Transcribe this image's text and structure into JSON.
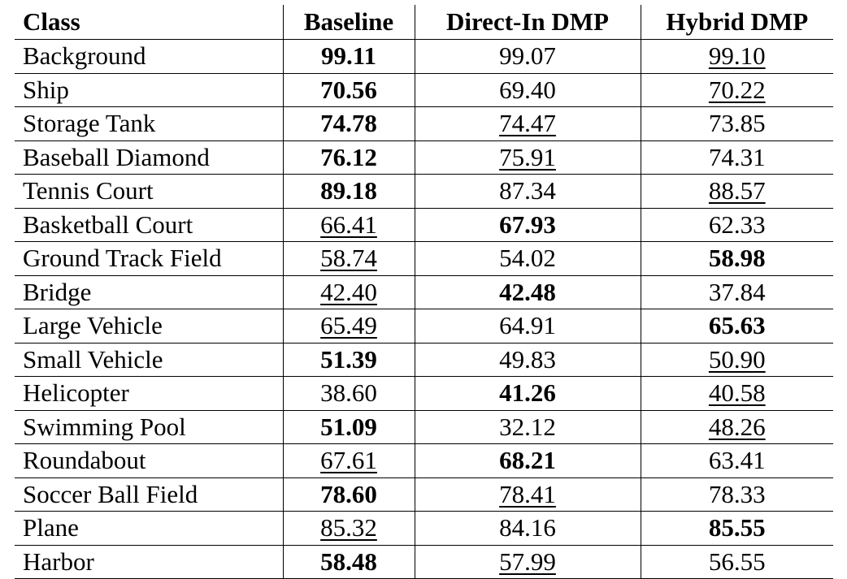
{
  "table": {
    "headers": [
      "Class",
      "Baseline",
      "Direct-In DMP",
      "Hybrid DMP"
    ],
    "rows": [
      {
        "class": "Background",
        "baseline": "99.11",
        "direct": "99.07",
        "hybrid": "99.10",
        "best": "baseline",
        "second": "hybrid"
      },
      {
        "class": "Ship",
        "baseline": "70.56",
        "direct": "69.40",
        "hybrid": "70.22",
        "best": "baseline",
        "second": "hybrid"
      },
      {
        "class": "Storage Tank",
        "baseline": "74.78",
        "direct": "74.47",
        "hybrid": "73.85",
        "best": "baseline",
        "second": "direct"
      },
      {
        "class": "Baseball Diamond",
        "baseline": "76.12",
        "direct": "75.91",
        "hybrid": "74.31",
        "best": "baseline",
        "second": "direct"
      },
      {
        "class": "Tennis Court",
        "baseline": "89.18",
        "direct": "87.34",
        "hybrid": "88.57",
        "best": "baseline",
        "second": "hybrid"
      },
      {
        "class": "Basketball Court",
        "baseline": "66.41",
        "direct": "67.93",
        "hybrid": "62.33",
        "best": "direct",
        "second": "baseline"
      },
      {
        "class": "Ground Track Field",
        "baseline": "58.74",
        "direct": "54.02",
        "hybrid": "58.98",
        "best": "hybrid",
        "second": "baseline"
      },
      {
        "class": "Bridge",
        "baseline": "42.40",
        "direct": "42.48",
        "hybrid": "37.84",
        "best": "direct",
        "second": "baseline"
      },
      {
        "class": "Large Vehicle",
        "baseline": "65.49",
        "direct": "64.91",
        "hybrid": "65.63",
        "best": "hybrid",
        "second": "baseline"
      },
      {
        "class": "Small Vehicle",
        "baseline": "51.39",
        "direct": "49.83",
        "hybrid": "50.90",
        "best": "baseline",
        "second": "hybrid"
      },
      {
        "class": "Helicopter",
        "baseline": "38.60",
        "direct": "41.26",
        "hybrid": "40.58",
        "best": "direct",
        "second": "hybrid"
      },
      {
        "class": "Swimming Pool",
        "baseline": "51.09",
        "direct": "32.12",
        "hybrid": "48.26",
        "best": "baseline",
        "second": "hybrid"
      },
      {
        "class": "Roundabout",
        "baseline": "67.61",
        "direct": "68.21",
        "hybrid": "63.41",
        "best": "direct",
        "second": "baseline"
      },
      {
        "class": "Soccer Ball Field",
        "baseline": "78.60",
        "direct": "78.41",
        "hybrid": "78.33",
        "best": "baseline",
        "second": "direct"
      },
      {
        "class": "Plane",
        "baseline": "85.32",
        "direct": "84.16",
        "hybrid": "85.55",
        "best": "hybrid",
        "second": "baseline"
      },
      {
        "class": "Harbor",
        "baseline": "58.48",
        "direct": "57.99",
        "hybrid": "56.55",
        "best": "baseline",
        "second": "direct"
      }
    ]
  }
}
